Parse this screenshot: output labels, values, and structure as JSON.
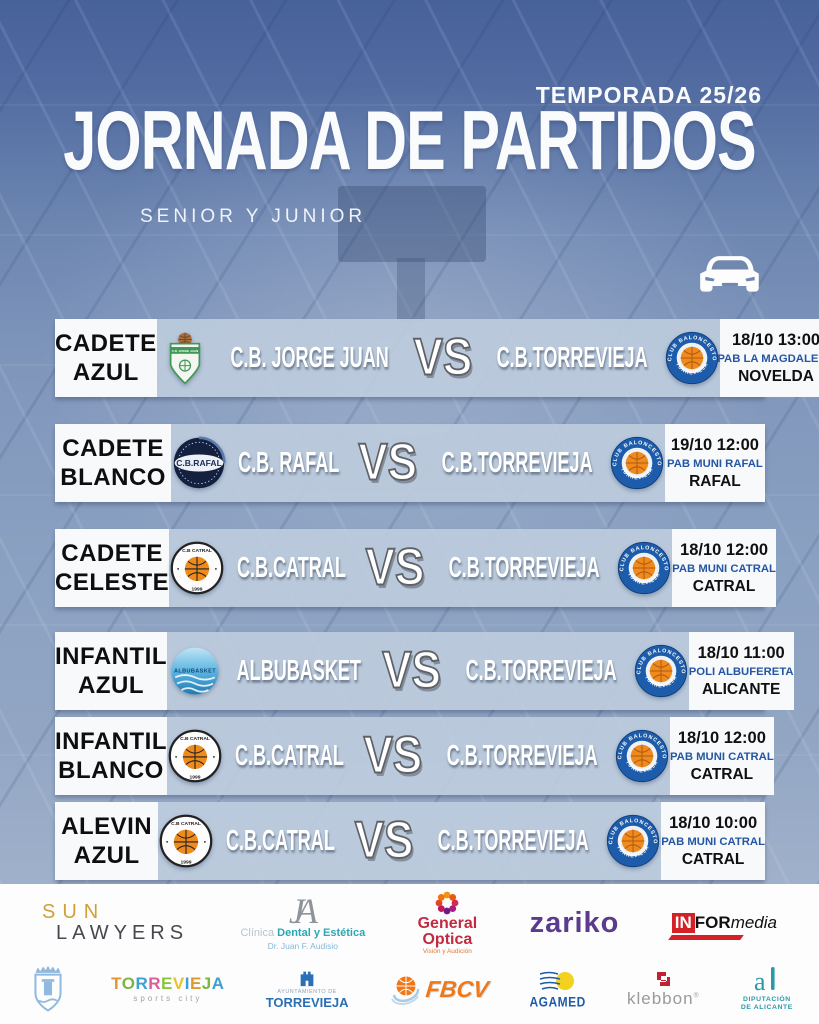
{
  "header": {
    "season": "TEMPORADA 25/26",
    "title": "JORNADA DE PARTIDOS",
    "subtitle": "SENIOR Y JUNIOR"
  },
  "vs_label": "VS",
  "matches": [
    {
      "category1": "CADETE",
      "category2": "AZUL",
      "home_name": "C.B. JORGE JUAN",
      "home_logo": "jorge-juan",
      "away_name": "C.B.TORREVIEJA",
      "away_logo": "torrevieja",
      "datetime": "18/10 13:00",
      "venue": "PAB LA MAGDALENA",
      "city": "NOVELDA"
    },
    {
      "category1": "CADETE",
      "category2": "BLANCO",
      "home_name": "C.B. RAFAL",
      "home_logo": "rafal",
      "away_name": "C.B.TORREVIEJA",
      "away_logo": "torrevieja",
      "datetime": "19/10 12:00",
      "venue": "PAB MUNI RAFAL",
      "city": "RAFAL"
    },
    {
      "category1": "CADETE",
      "category2": "CELESTE",
      "home_name": "C.B.CATRAL",
      "home_logo": "catral",
      "away_name": "C.B.TORREVIEJA",
      "away_logo": "torrevieja",
      "datetime": "18/10 12:00",
      "venue": "PAB MUNI CATRAL",
      "city": "CATRAL"
    },
    {
      "category1": "INFANTIL",
      "category2": "AZUL",
      "home_name": "ALBUBASKET",
      "home_logo": "albubasket",
      "away_name": "C.B.TORREVIEJA",
      "away_logo": "torrevieja",
      "datetime": "18/10 11:00",
      "venue": "POLI ALBUFERETA",
      "city": "ALICANTE"
    },
    {
      "category1": "INFANTIL",
      "category2": "BLANCO",
      "home_name": "C.B.CATRAL",
      "home_logo": "catral",
      "away_name": "C.B.TORREVIEJA",
      "away_logo": "torrevieja",
      "datetime": "18/10 12:00",
      "venue": "PAB MUNI CATRAL",
      "city": "CATRAL"
    },
    {
      "category1": "ALEVIN",
      "category2": "AZUL",
      "home_name": "C.B.CATRAL",
      "home_logo": "catral",
      "away_name": "C.B.TORREVIEJA",
      "away_logo": "torrevieja",
      "datetime": "18/10 10:00",
      "venue": "PAB MUNI CATRAL",
      "city": "CATRAL"
    }
  ],
  "logo_text": {
    "torrevieja_ring_top": "CLUB BALONCESTO",
    "torrevieja_ring_bottom": "TORREVIEJA",
    "rafal": "C.B.RAFAL",
    "catral_top": "C.B CATRAL",
    "catral_year": "1999",
    "albubasket": "ALBUBASKET",
    "jorge_juan": "C.B. JORGE JUAN"
  },
  "sponsors": {
    "sun_lawyers": {
      "line1": "SUN",
      "line2": "LAWYERS"
    },
    "dental": {
      "monogram": "JA",
      "word_gray": "Clínica",
      "word_teal1": "Dental",
      "word_teal2": "y Estética",
      "line2": "Dr. Juan F. Audisio"
    },
    "general_optica": {
      "line1": "General",
      "line2": "Optica",
      "tagline": "Visión y Audición"
    },
    "zariko": {
      "name": "zariko"
    },
    "informedia": {
      "part_in": "IN",
      "part_for": "FOR",
      "part_media": "media"
    },
    "torrevieja_sports": {
      "name": "TORREVIEJA",
      "tagline": "sports city"
    },
    "ayuntamiento": {
      "line1": "AYUNTAMIENTO DE",
      "line2": "TORREVIEJA"
    },
    "fbcv": {
      "name": "FBCV"
    },
    "agamed": {
      "name": "AGAMED"
    },
    "klebbon": {
      "name": "klebbon",
      "mark": "®"
    },
    "diputacion": {
      "line1": "DIPUTACIÓN",
      "line2": "DE ALICANTE"
    }
  },
  "colors": {
    "background_top": "#47619a",
    "background_bottom": "#a9b8cf",
    "row_band": "#bccbdd",
    "panel_white": "#f7f9fb",
    "venue_blue": "#2456a4",
    "torrevieja_blue": "#1d5cab",
    "basketball_orange": "#ef8b1d"
  }
}
